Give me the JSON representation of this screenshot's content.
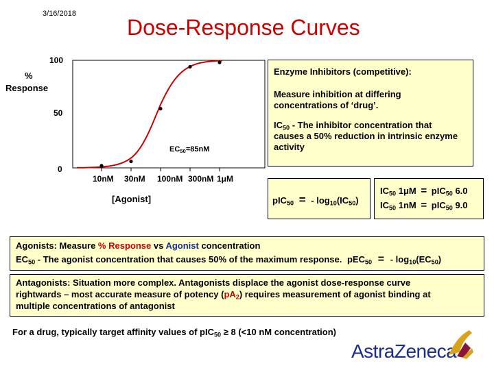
{
  "header": {
    "date": "3/16/2018",
    "title": "Dose-Response Curves"
  },
  "plot": {
    "y_100": "100",
    "y_pct": "%",
    "y_response": "Response",
    "y_50": "50",
    "y_0": "0",
    "ec50_prefix": "EC",
    "ec50_sub": "50",
    "ec50_suffix": "=85nM",
    "x_ticks": [
      "10nM",
      "30nM",
      "100nM",
      "300nM",
      "1μM"
    ],
    "x_label": "[Agonist]"
  },
  "chart_data": {
    "type": "scatter",
    "xlabel": "[Agonist]",
    "ylabel": "% Response",
    "x_scale": "log",
    "x_ticks": [
      "10nM",
      "30nM",
      "100nM",
      "300nM",
      "1μM"
    ],
    "ylim": [
      0,
      100
    ],
    "ec50_nM": 85,
    "points": [
      {
        "x_nM": 10,
        "y": 2
      },
      {
        "x_nM": 30,
        "y": 6
      },
      {
        "x_nM": 100,
        "y": 55
      },
      {
        "x_nM": 300,
        "y": 94
      },
      {
        "x_nM": 1000,
        "y": 98
      }
    ],
    "curve_color": "#cc0000",
    "point_color": "#000000"
  },
  "inhibitor_box": {
    "heading": "Enzyme Inhibitors (competitive):",
    "line1": "Measure inhibition at differing",
    "line2": "concentrations of ‘drug’.",
    "ic_prefix": "IC",
    "ic_sub": "50",
    "ic_line1": " - The inhibitor concentration that",
    "ic_line2": "causes a 50% reduction in intrinsic enzyme",
    "ic_line3": "activity"
  },
  "pic50_box": {
    "p": "pIC",
    "sub": "50",
    "eq": "=",
    "rhs_prefix": "- log",
    "rhs_sub1": "10",
    "rhs_mid": "(IC",
    "rhs_sub2": "50",
    "rhs_end": ")"
  },
  "examples_box": {
    "row1_left": "IC",
    "row1_sub": "50",
    "row1_val": " 1μM",
    "row1_eq": "=",
    "row1_right": "pIC",
    "row1_rsub": "50",
    "row1_rval": " 6.0",
    "row2_left": "IC",
    "row2_sub": "50",
    "row2_val": " 1nM",
    "row2_eq": "=",
    "row2_right": "pIC",
    "row2_rsub": "50",
    "row2_rval": " 9.0"
  },
  "agonist_box": {
    "l1_a": "Agonists: Measure ",
    "l1_b": "% Response",
    "l1_c": " vs ",
    "l1_d": "Agonist",
    "l1_e": " concentration",
    "l2_a": "EC",
    "l2_sub": "50",
    "l2_b": " - The agonist concentration that causes 50% of the maximum response.",
    "l2_c": "pEC",
    "l2_csub": "50",
    "l2_eq": "=",
    "l2_d": "- log",
    "l2_dsub": "10",
    "l2_e": "(EC",
    "l2_esub": "50",
    "l2_f": ")"
  },
  "antagonist_box": {
    "l1": "Antagonists: Situation more complex. Antagonists displace the agonist dose-response curve",
    "l2_a": "rightwards – most accurate measure of potency (",
    "l2_b": "pA",
    "l2_bsub": "2",
    "l2_c": ") requires measurement of agonist binding at",
    "l3": "multiple concentrations of antagonist"
  },
  "footer": {
    "target_a": "For a drug, typically target affinity values of pIC",
    "target_sub": "50",
    "target_b": " ≥ 8  (<10 nM concentration)",
    "logo": "AstraZeneca"
  }
}
